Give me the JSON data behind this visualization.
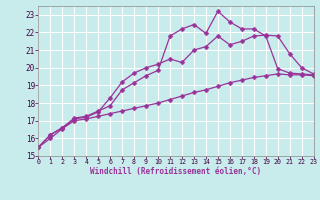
{
  "background_color": "#c8ecec",
  "grid_color": "#ffffff",
  "line_color": "#993399",
  "markersize": 2.5,
  "linewidth": 0.9,
  "xlabel": "Windchill (Refroidissement éolien,°C)",
  "xlim": [
    0,
    23
  ],
  "ylim": [
    15,
    23.5
  ],
  "yticks": [
    15,
    16,
    17,
    18,
    19,
    20,
    21,
    22,
    23
  ],
  "xticks": [
    0,
    1,
    2,
    3,
    4,
    5,
    6,
    7,
    8,
    9,
    10,
    11,
    12,
    13,
    14,
    15,
    16,
    17,
    18,
    19,
    20,
    21,
    22,
    23
  ],
  "curves": [
    {
      "x": [
        0,
        1,
        2,
        3,
        4,
        5,
        6,
        7,
        8,
        9,
        10,
        11,
        12,
        13,
        14,
        15,
        16,
        17,
        18,
        19,
        20,
        21,
        22,
        23
      ],
      "y": [
        15.5,
        16.2,
        16.6,
        17.15,
        17.25,
        17.55,
        17.85,
        18.75,
        19.15,
        19.55,
        19.85,
        21.8,
        22.2,
        22.45,
        21.95,
        23.2,
        22.6,
        22.2,
        22.2,
        21.8,
        19.95,
        19.7,
        19.65,
        19.6
      ]
    },
    {
      "x": [
        0,
        1,
        2,
        3,
        4,
        5,
        6,
        7,
        8,
        9,
        10,
        11,
        12,
        13,
        14,
        15,
        16,
        17,
        18,
        19,
        20,
        21,
        22,
        23
      ],
      "y": [
        15.5,
        16.2,
        16.6,
        17.1,
        17.2,
        17.5,
        18.3,
        19.2,
        19.7,
        20.0,
        20.2,
        20.5,
        20.3,
        21.0,
        21.2,
        21.8,
        21.3,
        21.5,
        21.8,
        21.85,
        21.8,
        20.8,
        20.0,
        19.65
      ]
    },
    {
      "x": [
        0,
        1,
        2,
        3,
        4,
        5,
        6,
        7,
        8,
        9,
        10,
        11,
        12,
        13,
        14,
        15,
        16,
        17,
        18,
        19,
        20,
        21,
        22,
        23
      ],
      "y": [
        15.5,
        16.0,
        16.55,
        17.0,
        17.1,
        17.25,
        17.4,
        17.55,
        17.7,
        17.85,
        18.0,
        18.2,
        18.4,
        18.6,
        18.75,
        18.95,
        19.15,
        19.3,
        19.45,
        19.55,
        19.65,
        19.6,
        19.6,
        19.55
      ]
    }
  ]
}
